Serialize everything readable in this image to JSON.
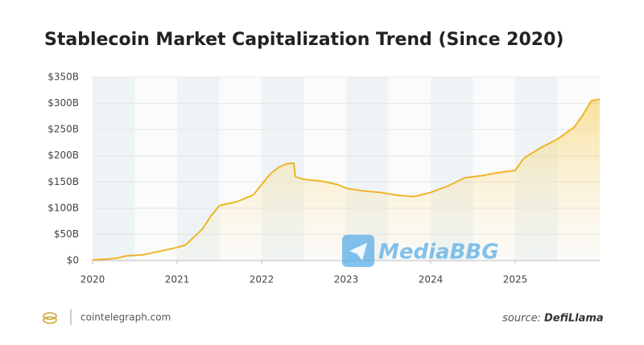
{
  "chart_data": {
    "type": "area",
    "title": "Stablecoin Market Capitalization Trend (Since 2020)",
    "x": [
      2020.0,
      2020.2,
      2020.3,
      2020.4,
      2020.6,
      2020.8,
      2021.0,
      2021.1,
      2021.2,
      2021.3,
      2021.4,
      2021.5,
      2021.7,
      2021.9,
      2022.0,
      2022.1,
      2022.2,
      2022.3,
      2022.38,
      2022.4,
      2022.5,
      2022.7,
      2022.9,
      2023.0,
      2023.2,
      2023.4,
      2023.6,
      2023.8,
      2024.0,
      2024.2,
      2024.4,
      2024.6,
      2024.8,
      2025.0,
      2025.1,
      2025.3,
      2025.5,
      2025.7,
      2025.8,
      2025.9,
      2026.0
    ],
    "values": [
      1,
      3,
      5,
      9,
      11,
      18,
      25,
      30,
      45,
      60,
      85,
      105,
      112,
      125,
      145,
      165,
      178,
      185,
      186,
      160,
      155,
      152,
      145,
      138,
      133,
      130,
      125,
      122,
      130,
      142,
      158,
      162,
      168,
      172,
      195,
      215,
      232,
      255,
      278,
      305,
      308
    ],
    "color": "#f0b429",
    "xlim": [
      2020,
      2026
    ],
    "xticks": [
      2020,
      2021,
      2022,
      2023,
      2024,
      2025
    ],
    "ylim": [
      0,
      350
    ],
    "yticks": [
      {
        "value": 0,
        "label": "$0"
      },
      {
        "value": 50,
        "label": "$50B"
      },
      {
        "value": 100,
        "label": "$100B"
      },
      {
        "value": 150,
        "label": "$150B"
      },
      {
        "value": 200,
        "label": "$200B"
      },
      {
        "value": 250,
        "label": "$250B"
      },
      {
        "value": 300,
        "label": "$300B"
      },
      {
        "value": 350,
        "label": "$350B"
      }
    ],
    "grid": true
  },
  "watermark": "MediaBBG",
  "footer": {
    "brand": "cointelegraph.com",
    "source_label": "source:",
    "source": "DefiLlama"
  }
}
